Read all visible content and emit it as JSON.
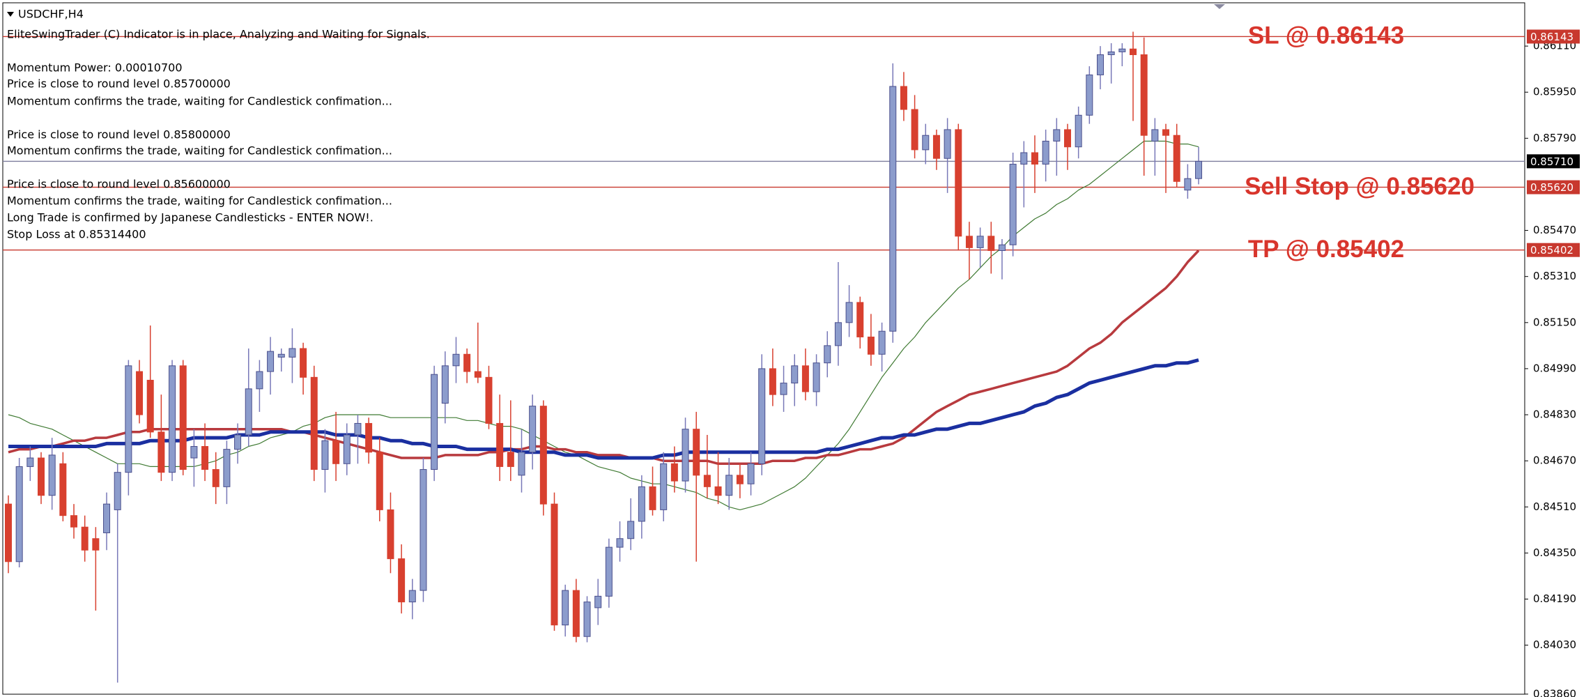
{
  "chart_data": {
    "type": "candlestick",
    "symbol": "USDCHF,H4",
    "info_lines": [
      "EliteSwingTrader (C) Indicator is in place, Analyzing and Waiting for Signals.",
      "Momentum Power: 0.00010700",
      "Price is close to round level 0.85700000",
      "Momentum confirms the trade, waiting for Candlestick confimation...",
      "Price is close to round level 0.85800000",
      "Momentum confirms the trade, waiting for Candlestick confimation...",
      "Price is close to round level 0.85600000",
      "Momentum confirms the trade, waiting for Candlestick confimation...",
      "Long Trade is confirmed by Japanese Candlesticks - ENTER NOW!.",
      "Stop Loss at 0.85314400"
    ],
    "up_color": "#8c9ccc",
    "down_color": "#d8402f",
    "ohlc": [
      [
        0.8452,
        0.8455,
        0.8428,
        0.8432
      ],
      [
        0.8432,
        0.8468,
        0.843,
        0.8465
      ],
      [
        0.8465,
        0.8472,
        0.846,
        0.8468
      ],
      [
        0.8468,
        0.847,
        0.8452,
        0.8455
      ],
      [
        0.8455,
        0.8475,
        0.845,
        0.8469
      ],
      [
        0.8466,
        0.847,
        0.8446,
        0.8448
      ],
      [
        0.8448,
        0.8452,
        0.844,
        0.8444
      ],
      [
        0.8444,
        0.8448,
        0.8432,
        0.8436
      ],
      [
        0.844,
        0.8444,
        0.8415,
        0.8436
      ],
      [
        0.8442,
        0.8456,
        0.8436,
        0.8452
      ],
      [
        0.845,
        0.8466,
        0.839,
        0.8463
      ],
      [
        0.8463,
        0.8502,
        0.8455,
        0.85
      ],
      [
        0.8498,
        0.8502,
        0.848,
        0.8483
      ],
      [
        0.8495,
        0.8514,
        0.8475,
        0.8477
      ],
      [
        0.8477,
        0.849,
        0.846,
        0.8463
      ],
      [
        0.8463,
        0.8502,
        0.846,
        0.85
      ],
      [
        0.85,
        0.8502,
        0.8462,
        0.8464
      ],
      [
        0.8468,
        0.8478,
        0.8458,
        0.8472
      ],
      [
        0.8472,
        0.848,
        0.846,
        0.8464
      ],
      [
        0.8464,
        0.847,
        0.8452,
        0.8458
      ],
      [
        0.8458,
        0.8474,
        0.8452,
        0.8471
      ],
      [
        0.8471,
        0.848,
        0.8466,
        0.8476
      ],
      [
        0.8476,
        0.8506,
        0.8472,
        0.8492
      ],
      [
        0.8492,
        0.8502,
        0.8484,
        0.8498
      ],
      [
        0.8498,
        0.851,
        0.849,
        0.8505
      ],
      [
        0.8503,
        0.8506,
        0.8498,
        0.8504
      ],
      [
        0.8503,
        0.8513,
        0.8494,
        0.8506
      ],
      [
        0.8506,
        0.8508,
        0.849,
        0.8496
      ],
      [
        0.8496,
        0.85,
        0.846,
        0.8464
      ],
      [
        0.8464,
        0.8478,
        0.8456,
        0.8474
      ],
      [
        0.8474,
        0.8484,
        0.846,
        0.8466
      ],
      [
        0.8466,
        0.848,
        0.8462,
        0.8476
      ],
      [
        0.8476,
        0.8483,
        0.8466,
        0.848
      ],
      [
        0.848,
        0.8482,
        0.8466,
        0.847
      ],
      [
        0.847,
        0.8475,
        0.8446,
        0.845
      ],
      [
        0.845,
        0.8456,
        0.8428,
        0.8433
      ],
      [
        0.8433,
        0.8438,
        0.8414,
        0.8418
      ],
      [
        0.8418,
        0.8426,
        0.8412,
        0.8422
      ],
      [
        0.8422,
        0.8468,
        0.8418,
        0.8464
      ],
      [
        0.8464,
        0.85,
        0.846,
        0.8497
      ],
      [
        0.8487,
        0.8505,
        0.848,
        0.85
      ],
      [
        0.85,
        0.851,
        0.8494,
        0.8504
      ],
      [
        0.8504,
        0.8506,
        0.8494,
        0.8498
      ],
      [
        0.8498,
        0.8515,
        0.8494,
        0.8496
      ],
      [
        0.8496,
        0.85,
        0.8478,
        0.848
      ],
      [
        0.848,
        0.849,
        0.846,
        0.8465
      ],
      [
        0.847,
        0.8488,
        0.846,
        0.8465
      ],
      [
        0.8462,
        0.8478,
        0.8456,
        0.847
      ],
      [
        0.847,
        0.849,
        0.8464,
        0.8486
      ],
      [
        0.8486,
        0.8488,
        0.8448,
        0.8452
      ],
      [
        0.8452,
        0.8456,
        0.8408,
        0.841
      ],
      [
        0.841,
        0.8424,
        0.8406,
        0.8422
      ],
      [
        0.8422,
        0.8426,
        0.8404,
        0.8406
      ],
      [
        0.8406,
        0.842,
        0.8404,
        0.8418
      ],
      [
        0.8416,
        0.8426,
        0.841,
        0.842
      ],
      [
        0.842,
        0.844,
        0.8416,
        0.8437
      ],
      [
        0.8437,
        0.8446,
        0.8432,
        0.844
      ],
      [
        0.844,
        0.8454,
        0.8436,
        0.8446
      ],
      [
        0.8446,
        0.8462,
        0.844,
        0.8458
      ],
      [
        0.8458,
        0.8465,
        0.8448,
        0.845
      ],
      [
        0.845,
        0.847,
        0.8446,
        0.8466
      ],
      [
        0.8466,
        0.8472,
        0.8456,
        0.846
      ],
      [
        0.846,
        0.8482,
        0.8456,
        0.8478
      ],
      [
        0.8478,
        0.8484,
        0.8432,
        0.8462
      ],
      [
        0.8462,
        0.8476,
        0.8454,
        0.8458
      ],
      [
        0.8458,
        0.847,
        0.8452,
        0.8455
      ],
      [
        0.8455,
        0.8468,
        0.845,
        0.8462
      ],
      [
        0.8462,
        0.8466,
        0.8454,
        0.8459
      ],
      [
        0.8459,
        0.847,
        0.8455,
        0.8466
      ],
      [
        0.8466,
        0.8504,
        0.8462,
        0.8499
      ],
      [
        0.8499,
        0.8506,
        0.8486,
        0.849
      ],
      [
        0.849,
        0.85,
        0.8484,
        0.8494
      ],
      [
        0.8494,
        0.8504,
        0.8486,
        0.85
      ],
      [
        0.85,
        0.8506,
        0.8488,
        0.8491
      ],
      [
        0.8491,
        0.8504,
        0.8486,
        0.8501
      ],
      [
        0.8501,
        0.8512,
        0.8496,
        0.8507
      ],
      [
        0.8507,
        0.8536,
        0.85,
        0.8515
      ],
      [
        0.8515,
        0.8528,
        0.851,
        0.8522
      ],
      [
        0.8522,
        0.8524,
        0.8506,
        0.851
      ],
      [
        0.851,
        0.8518,
        0.85,
        0.8504
      ],
      [
        0.8504,
        0.8515,
        0.8498,
        0.8512
      ],
      [
        0.8512,
        0.8605,
        0.8508,
        0.8597
      ],
      [
        0.8597,
        0.8602,
        0.8585,
        0.8589
      ],
      [
        0.8589,
        0.8594,
        0.8572,
        0.8575
      ],
      [
        0.8575,
        0.8584,
        0.857,
        0.858
      ],
      [
        0.858,
        0.8582,
        0.8568,
        0.8572
      ],
      [
        0.8572,
        0.8586,
        0.856,
        0.8582
      ],
      [
        0.8582,
        0.8584,
        0.854,
        0.8545
      ],
      [
        0.8545,
        0.855,
        0.853,
        0.8541
      ],
      [
        0.8541,
        0.8548,
        0.8534,
        0.8545
      ],
      [
        0.8545,
        0.855,
        0.8532,
        0.854
      ],
      [
        0.854,
        0.8544,
        0.853,
        0.8542
      ],
      [
        0.8542,
        0.8574,
        0.8538,
        0.857
      ],
      [
        0.857,
        0.8578,
        0.8555,
        0.8574
      ],
      [
        0.8574,
        0.858,
        0.856,
        0.857
      ],
      [
        0.857,
        0.8582,
        0.8564,
        0.8578
      ],
      [
        0.8578,
        0.8586,
        0.8566,
        0.8582
      ],
      [
        0.8582,
        0.8584,
        0.8568,
        0.8576
      ],
      [
        0.8576,
        0.859,
        0.8572,
        0.8587
      ],
      [
        0.8587,
        0.8604,
        0.8584,
        0.8601
      ],
      [
        0.8601,
        0.8611,
        0.8596,
        0.8608
      ],
      [
        0.8608,
        0.8612,
        0.8598,
        0.8609
      ],
      [
        0.8609,
        0.8612,
        0.8604,
        0.861
      ],
      [
        0.861,
        0.8616,
        0.8585,
        0.8608
      ],
      [
        0.8608,
        0.8614,
        0.8566,
        0.858
      ],
      [
        0.8578,
        0.8586,
        0.8566,
        0.8582
      ],
      [
        0.8582,
        0.8584,
        0.856,
        0.858
      ],
      [
        0.858,
        0.8584,
        0.8562,
        0.8564
      ],
      [
        0.8561,
        0.857,
        0.8558,
        0.8565
      ],
      [
        0.8565,
        0.8576,
        0.8563,
        0.8571
      ]
    ],
    "moving_averages": [
      {
        "color": "#3f7a32",
        "width": 1.2,
        "values": [
          0.8483,
          0.8482,
          0.848,
          0.8479,
          0.8478,
          0.8476,
          0.8474,
          0.8472,
          0.847,
          0.8468,
          0.8466,
          0.8466,
          0.8466,
          0.8465,
          0.8465,
          0.8465,
          0.8465,
          0.8465,
          0.8466,
          0.8467,
          0.8469,
          0.847,
          0.8472,
          0.8473,
          0.8475,
          0.8476,
          0.8477,
          0.8479,
          0.848,
          0.8482,
          0.8483,
          0.8483,
          0.8483,
          0.8483,
          0.8483,
          0.8482,
          0.8482,
          0.8482,
          0.8482,
          0.8482,
          0.8482,
          0.8482,
          0.8481,
          0.8481,
          0.848,
          0.8479,
          0.8479,
          0.8478,
          0.8476,
          0.8474,
          0.8472,
          0.847,
          0.8469,
          0.8467,
          0.8465,
          0.8464,
          0.8463,
          0.8461,
          0.846,
          0.8459,
          0.8459,
          0.8458,
          0.8457,
          0.8456,
          0.8454,
          0.8453,
          0.8451,
          0.845,
          0.8451,
          0.8452,
          0.8454,
          0.8456,
          0.8458,
          0.8461,
          0.8465,
          0.8469,
          0.8473,
          0.8478,
          0.8484,
          0.849,
          0.8496,
          0.8501,
          0.8506,
          0.851,
          0.8515,
          0.8519,
          0.8523,
          0.8527,
          0.853,
          0.8534,
          0.8538,
          0.8541,
          0.8545,
          0.8548,
          0.8551,
          0.8553,
          0.8556,
          0.8558,
          0.8561,
          0.8563,
          0.8566,
          0.8569,
          0.8572,
          0.8575,
          0.8578,
          0.8578,
          0.8578,
          0.8577,
          0.8577,
          0.8576
        ]
      },
      {
        "color": "#b83a3e",
        "width": 3.5,
        "values": [
          0.847,
          0.8471,
          0.8471,
          0.8472,
          0.8472,
          0.8473,
          0.8474,
          0.8474,
          0.8475,
          0.8475,
          0.8476,
          0.8477,
          0.8477,
          0.8478,
          0.8478,
          0.8478,
          0.8478,
          0.8478,
          0.8478,
          0.8478,
          0.8478,
          0.8478,
          0.8478,
          0.8478,
          0.8478,
          0.8478,
          0.8477,
          0.8477,
          0.8476,
          0.8475,
          0.8474,
          0.8473,
          0.8472,
          0.8471,
          0.847,
          0.8469,
          0.8468,
          0.8468,
          0.8468,
          0.8468,
          0.8469,
          0.8469,
          0.8469,
          0.8469,
          0.847,
          0.847,
          0.8471,
          0.8471,
          0.8472,
          0.8472,
          0.8471,
          0.8471,
          0.847,
          0.847,
          0.8469,
          0.8469,
          0.8469,
          0.8468,
          0.8468,
          0.8468,
          0.8467,
          0.8467,
          0.8467,
          0.8467,
          0.8467,
          0.8466,
          0.8466,
          0.8466,
          0.8466,
          0.8466,
          0.8467,
          0.8467,
          0.8467,
          0.8468,
          0.8468,
          0.8469,
          0.8469,
          0.847,
          0.8471,
          0.8471,
          0.8472,
          0.8473,
          0.8475,
          0.8478,
          0.8481,
          0.8484,
          0.8486,
          0.8488,
          0.849,
          0.8491,
          0.8492,
          0.8493,
          0.8494,
          0.8495,
          0.8496,
          0.8497,
          0.8498,
          0.85,
          0.8503,
          0.8506,
          0.8508,
          0.8511,
          0.8515,
          0.8518,
          0.8521,
          0.8524,
          0.8527,
          0.8531,
          0.8536,
          0.854
        ]
      },
      {
        "color": "#1a2fa0",
        "width": 5,
        "values": [
          0.8472,
          0.8472,
          0.8472,
          0.8472,
          0.8472,
          0.8472,
          0.8472,
          0.8472,
          0.8472,
          0.8473,
          0.8473,
          0.8473,
          0.8473,
          0.8474,
          0.8474,
          0.8474,
          0.8474,
          0.8475,
          0.8475,
          0.8475,
          0.8475,
          0.8476,
          0.8476,
          0.8476,
          0.8477,
          0.8477,
          0.8477,
          0.8477,
          0.8477,
          0.8477,
          0.8476,
          0.8476,
          0.8476,
          0.8475,
          0.8475,
          0.8474,
          0.8474,
          0.8473,
          0.8473,
          0.8472,
          0.8472,
          0.8472,
          0.8471,
          0.8471,
          0.8471,
          0.8471,
          0.8471,
          0.847,
          0.847,
          0.847,
          0.847,
          0.8469,
          0.8469,
          0.8469,
          0.8468,
          0.8468,
          0.8468,
          0.8468,
          0.8468,
          0.8468,
          0.8469,
          0.8469,
          0.847,
          0.847,
          0.847,
          0.847,
          0.847,
          0.847,
          0.847,
          0.847,
          0.847,
          0.847,
          0.847,
          0.847,
          0.847,
          0.8471,
          0.8471,
          0.8472,
          0.8473,
          0.8474,
          0.8475,
          0.8475,
          0.8476,
          0.8476,
          0.8477,
          0.8478,
          0.8478,
          0.8479,
          0.848,
          0.848,
          0.8481,
          0.8482,
          0.8483,
          0.8484,
          0.8486,
          0.8487,
          0.8489,
          0.849,
          0.8492,
          0.8494,
          0.8495,
          0.8496,
          0.8497,
          0.8498,
          0.8499,
          0.85,
          0.85,
          0.8501,
          0.8501,
          0.8502
        ]
      }
    ],
    "ylim": [
      0.8385,
      0.8627
    ],
    "yticks": [
      {
        "value": 0.8611,
        "label": "0.86110"
      },
      {
        "value": 0.8595,
        "label": "0.85950"
      },
      {
        "value": 0.8579,
        "label": "0.85790"
      },
      {
        "value": 0.8547,
        "label": "0.85470"
      },
      {
        "value": 0.8531,
        "label": "0.85310"
      },
      {
        "value": 0.8515,
        "label": "0.85150"
      },
      {
        "value": 0.8499,
        "label": "0.84990"
      },
      {
        "value": 0.8483,
        "label": "0.84830"
      },
      {
        "value": 0.8467,
        "label": "0.84670"
      },
      {
        "value": 0.8451,
        "label": "0.84510"
      },
      {
        "value": 0.8435,
        "label": "0.84350"
      },
      {
        "value": 0.8419,
        "label": "0.84190"
      },
      {
        "value": 0.8403,
        "label": "0.84030"
      },
      {
        "value": 0.8386,
        "label": "0.83860"
      }
    ],
    "levels": [
      {
        "price": 0.86143,
        "text": "SL @ 0.86143",
        "color": "#c8382e"
      },
      {
        "price": {
          "value": 0.8571,
          "label": "0.85710"
        },
        "color": "#7c7c9c"
      },
      {
        "price": {
          "value": 0.8562,
          "label": "0.85620"
        },
        "text": "Sell Stop @ 0.85620",
        "color": "#c8382e"
      },
      {
        "price": 0.85402,
        "text": "TP @ 0.85402",
        "color": "#c8382e"
      }
    ]
  }
}
